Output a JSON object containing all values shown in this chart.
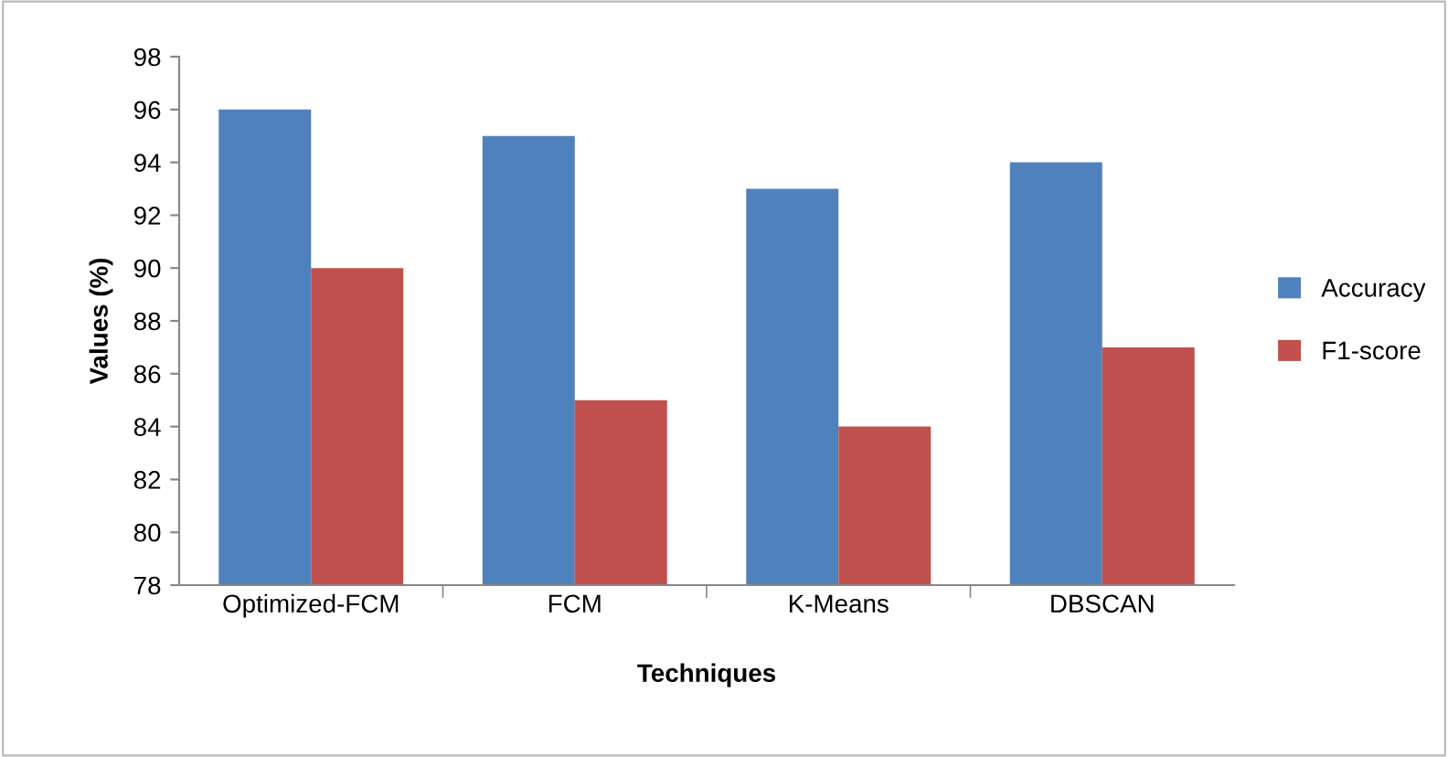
{
  "chart_data": {
    "type": "bar",
    "xlabel": "Techniques",
    "ylabel": "Values (%)",
    "categories": [
      "Optimized-FCM",
      "FCM",
      "K-Means",
      "DBSCAN"
    ],
    "series": [
      {
        "name": "Accuracy",
        "color": "#4f81bd",
        "values": [
          96,
          95,
          93,
          94
        ]
      },
      {
        "name": "F1-score",
        "color": "#c0504d",
        "values": [
          90,
          85,
          84,
          87
        ]
      }
    ],
    "ylim": [
      78,
      98
    ],
    "yticks": [
      78,
      80,
      82,
      84,
      86,
      88,
      90,
      92,
      94,
      96,
      98
    ],
    "grid": false,
    "legend": "right"
  }
}
